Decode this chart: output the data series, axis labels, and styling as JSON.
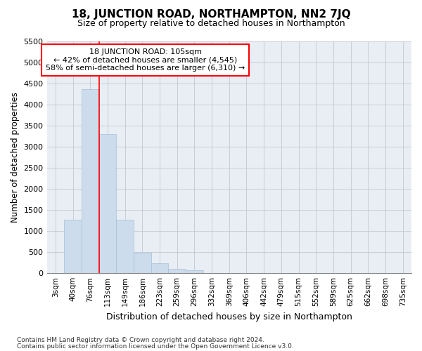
{
  "title": "18, JUNCTION ROAD, NORTHAMPTON, NN2 7JQ",
  "subtitle": "Size of property relative to detached houses in Northampton",
  "xlabel": "Distribution of detached houses by size in Northampton",
  "ylabel": "Number of detached properties",
  "footnote1": "Contains HM Land Registry data © Crown copyright and database right 2024.",
  "footnote2": "Contains public sector information licensed under the Open Government Licence v3.0.",
  "annotation_title": "18 JUNCTION ROAD: 105sqm",
  "annotation_line2": "← 42% of detached houses are smaller (4,545)",
  "annotation_line3": "58% of semi-detached houses are larger (6,310) →",
  "bar_color": "#ccdcec",
  "bar_edge_color": "#a8c0d8",
  "vline_color": "red",
  "categories": [
    "3sqm",
    "40sqm",
    "76sqm",
    "113sqm",
    "149sqm",
    "186sqm",
    "223sqm",
    "259sqm",
    "296sqm",
    "332sqm",
    "369sqm",
    "406sqm",
    "442sqm",
    "479sqm",
    "515sqm",
    "552sqm",
    "589sqm",
    "625sqm",
    "662sqm",
    "698sqm",
    "735sqm"
  ],
  "values": [
    0,
    1270,
    4360,
    3300,
    1265,
    480,
    230,
    105,
    65,
    0,
    0,
    0,
    0,
    0,
    0,
    0,
    0,
    0,
    0,
    0,
    0
  ],
  "ylim": [
    0,
    5500
  ],
  "yticks": [
    0,
    500,
    1000,
    1500,
    2000,
    2500,
    3000,
    3500,
    4000,
    4500,
    5000,
    5500
  ],
  "vline_x": 2.5,
  "plot_bg_color": "#e8eef4",
  "fig_bg_color": "#ffffff",
  "grid_color": "#c0c8d4"
}
